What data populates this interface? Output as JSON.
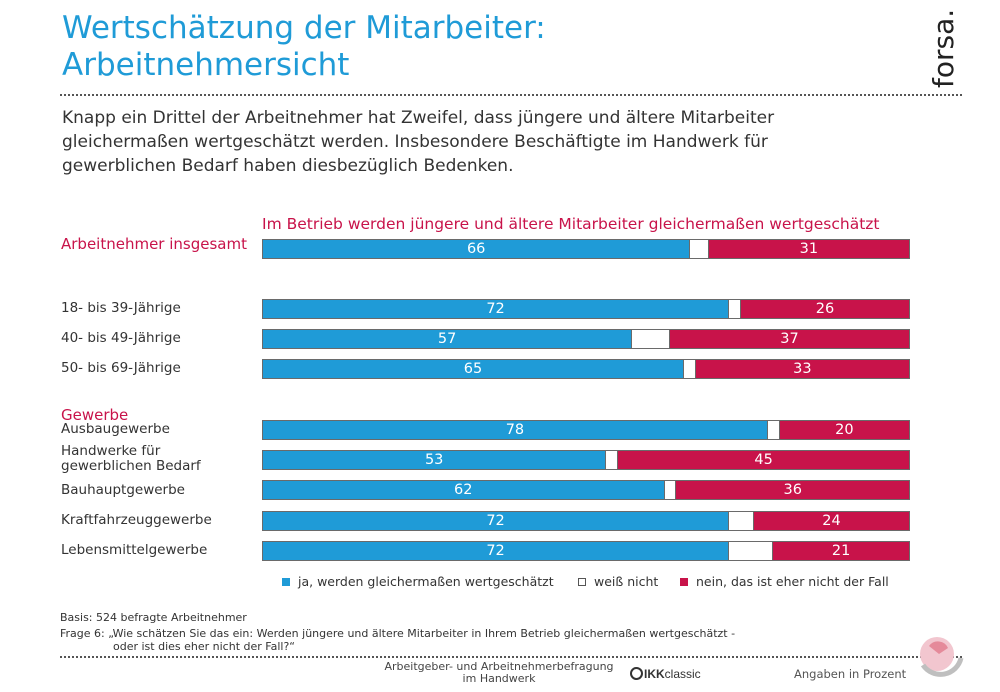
{
  "title": {
    "line1": "Wertschätzung der Mitarbeiter:",
    "line2": "Arbeitnehmersicht"
  },
  "logo_text": "forsa.",
  "intro": {
    "line1": "Knapp ein Drittel der Arbeitnehmer hat Zweifel, dass jüngere und ältere Mitarbeiter",
    "line2": "gleichermaßen wertgeschätzt werden. Insbesondere Beschäftigte im Handwerk für",
    "line3": "gewerblichen Bedarf haben diesbezüglich Bedenken."
  },
  "colors": {
    "accent_blue": "#1f9bd7",
    "accent_red": "#c8134a"
  },
  "chart_data": {
    "type": "bar",
    "orientation": "horizontal",
    "stacked": true,
    "title": "Im Betrieb werden jüngere und ältere Mitarbeiter gleichermaßen wertgeschätzt",
    "xlim": [
      0,
      100
    ],
    "unit": "Angaben in Prozent",
    "group_headers": {
      "total": "Arbeitnehmer insgesamt",
      "trade": "Gewerbe"
    },
    "categories": [
      "Arbeitnehmer insgesamt",
      "18- bis 39-Jährige",
      "40- bis 49-Jährige",
      "50- bis 69-Jährige",
      "Ausbaugewerbe",
      "Handwerke für gewerblichen Bedarf",
      "Bauhauptgewerbe",
      "Kraftfahrzeuggewerbe",
      "Lebensmittelgewerbe"
    ],
    "category_lines": [
      [
        "Arbeitnehmer insgesamt"
      ],
      [
        "18- bis 39-Jährige"
      ],
      [
        "40- bis 49-Jährige"
      ],
      [
        "50- bis 69-Jährige"
      ],
      [
        "Ausbaugewerbe"
      ],
      [
        "Handwerke für",
        "gewerblichen Bedarf"
      ],
      [
        "Bauhauptgewerbe"
      ],
      [
        "Kraftfahrzeuggewerbe"
      ],
      [
        "Lebensmittelgewerbe"
      ]
    ],
    "series": [
      {
        "name": "ja, werden gleichermaßen wertgeschätzt",
        "color": "#1f9bd7",
        "values": [
          66,
          72,
          57,
          65,
          78,
          53,
          62,
          72,
          72
        ]
      },
      {
        "name": "weiß nicht",
        "color": "#ffffff",
        "values": [
          3,
          2,
          6,
          2,
          2,
          2,
          2,
          4,
          7
        ]
      },
      {
        "name": "nein, das ist eher nicht der Fall",
        "color": "#c8134a",
        "values": [
          31,
          26,
          37,
          33,
          20,
          45,
          36,
          24,
          21
        ]
      }
    ],
    "data_labels": {
      "yes": [
        "66",
        "72",
        "57",
        "65",
        "78",
        "53",
        "62",
        "72",
        "72"
      ],
      "no": [
        "31",
        "26",
        "37",
        "33",
        "20",
        "45",
        "36",
        "24",
        "21"
      ]
    },
    "legend_position": "bottom"
  },
  "legend": {
    "yes": "ja, werden gleichermaßen wertgeschätzt",
    "dk": "weiß nicht",
    "no": "nein, das ist eher nicht der Fall"
  },
  "footer": {
    "basis": "Basis: 524 befragte Arbeitnehmer",
    "question_line1": "Frage 6: „Wie schätzen Sie das ein: Werden jüngere und ältere Mitarbeiter in Ihrem Betrieb gleichermaßen wertgeschätzt -",
    "question_line2": "oder ist dies eher nicht der Fall?“",
    "survey_line1": "Arbeitgeber- und Arbeitnehmerbefragung",
    "survey_line2": "im Handwerk",
    "sponsor_bold": "IKK",
    "sponsor_rest": "classic",
    "unit": "Angaben in Prozent"
  }
}
